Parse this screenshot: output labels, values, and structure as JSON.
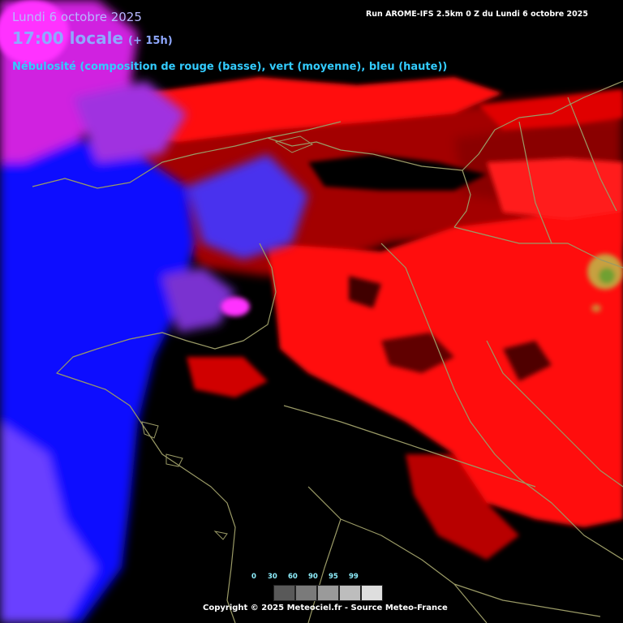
{
  "header": {
    "date": "Lundi 6 octobre 2025",
    "time": "17:00 locale",
    "offset": "(+ 15h)",
    "description": "Nébulosité (composition de rouge (basse), vert (moyenne), bleu (haute))",
    "run": "Run AROME-IFS 2.5km 0 Z du Lundi 6 octobre 2025"
  },
  "legend": {
    "labels": [
      "0",
      "30",
      "60",
      "90",
      "95",
      "99"
    ],
    "colors": [
      "#595959",
      "#7a7a7a",
      "#9a9a9a",
      "#bdbdbd",
      "#dedede",
      "#ffffff"
    ]
  },
  "footer": {
    "copyright": "Copyright © 2025 Meteociel.fr - Source Meteo-France"
  },
  "colors": {
    "low_cloud": "#ff0000",
    "mid_cloud": "#00ff00",
    "high_cloud": "#0000ff",
    "background": "#000000",
    "borders": "#9a9a66"
  }
}
